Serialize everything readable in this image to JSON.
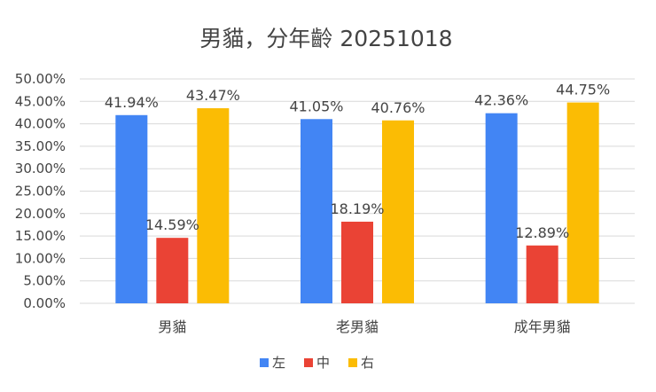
{
  "chart_data": {
    "type": "bar",
    "title": "男貓，分年齡 20251018",
    "xlabel": "",
    "ylabel": "",
    "categories": [
      "男貓",
      "老男貓",
      "成年男貓"
    ],
    "series": [
      {
        "name": "左",
        "color": "#4285f4",
        "values": [
          41.94,
          41.05,
          42.36
        ],
        "labels": [
          "41.94%",
          "41.05%",
          "42.36%"
        ]
      },
      {
        "name": "中",
        "color": "#ea4335",
        "values": [
          14.59,
          18.19,
          12.89
        ],
        "labels": [
          "14.59%",
          "18.19%",
          "12.89%"
        ]
      },
      {
        "name": "右",
        "color": "#fbbc04",
        "values": [
          43.47,
          40.76,
          44.75
        ],
        "labels": [
          "43.47%",
          "40.76%",
          "44.75%"
        ]
      }
    ],
    "ylim": [
      0,
      50
    ],
    "yticks": [
      0,
      5,
      10,
      15,
      20,
      25,
      30,
      35,
      40,
      45,
      50
    ],
    "ytick_labels": [
      "0.00%",
      "5.00%",
      "10.00%",
      "15.00%",
      "20.00%",
      "25.00%",
      "30.00%",
      "35.00%",
      "40.00%",
      "45.00%",
      "50.00%"
    ],
    "grid": true,
    "legend_position": "bottom"
  }
}
